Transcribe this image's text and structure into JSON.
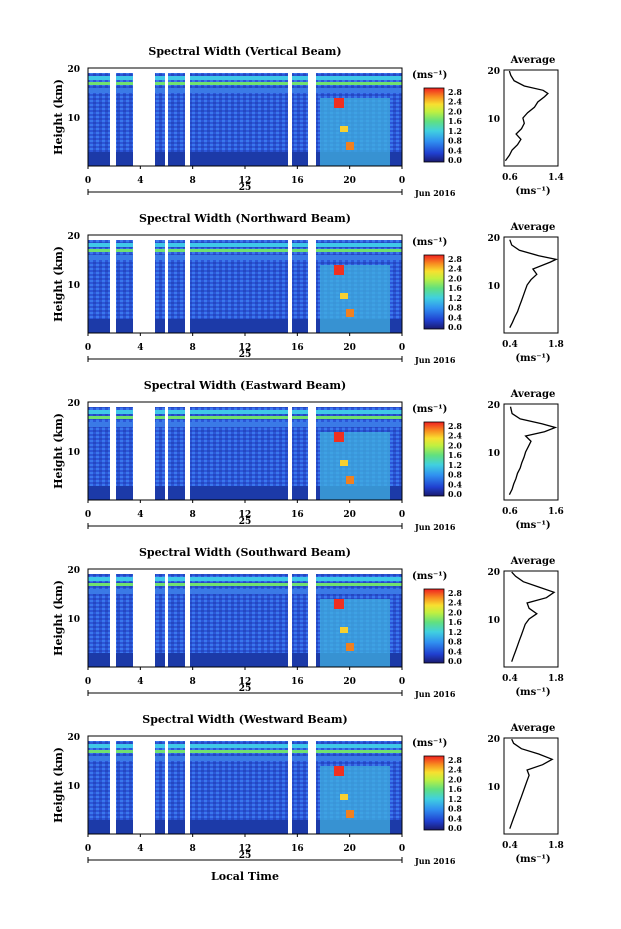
{
  "panels": [
    {
      "title": "Spectral Width (Vertical Beam)",
      "avg_ticks": [
        "0.6",
        "1.4"
      ]
    },
    {
      "title": "Spectral Width (Northward Beam)",
      "avg_ticks": [
        "0.4",
        "1.8"
      ]
    },
    {
      "title": "Spectral Width (Eastward Beam)",
      "avg_ticks": [
        "0.6",
        "1.6"
      ]
    },
    {
      "title": "Spectral Width (Southward Beam)",
      "avg_ticks": [
        "0.4",
        "1.8"
      ]
    },
    {
      "title": "Spectral Width (Westward Beam)",
      "avg_ticks": [
        "0.4",
        "1.8"
      ]
    }
  ],
  "common": {
    "ylabel": "Height (km)",
    "y_ticks": [
      "20",
      "10"
    ],
    "x_ticks": [
      "0",
      "4",
      "8",
      "12",
      "16",
      "20",
      "0"
    ],
    "day_label": "25",
    "month_label": "Jun 2016",
    "unit_label": "(ms⁻¹)",
    "colorbar_ticks": [
      "2.8",
      "2.4",
      "2.0",
      "1.6",
      "1.2",
      "0.8",
      "0.4",
      "0.0"
    ],
    "avg_title": "Average",
    "avg_ylabel_ticks": [
      "20",
      "10"
    ],
    "avg_xlabel": "(ms⁻¹)",
    "xlabel_bottom": "Local Time"
  },
  "chart_data": [
    {
      "type": "heatmap",
      "title": "Spectral Width (Vertical Beam)",
      "x_unit": "Local Time (h)",
      "xlim": [
        0,
        24
      ],
      "ylim": [
        2,
        20
      ],
      "zlim": [
        0.0,
        3.0
      ],
      "colorbar_ticks": [
        0.0,
        0.4,
        0.8,
        1.2,
        1.6,
        2.0,
        2.4,
        2.8
      ]
    },
    {
      "type": "line",
      "title": "Average",
      "xlim": [
        0.6,
        1.4
      ],
      "ylim": [
        2,
        20
      ],
      "points": [
        [
          0.62,
          3
        ],
        [
          0.68,
          4
        ],
        [
          0.72,
          5
        ],
        [
          0.8,
          6
        ],
        [
          0.85,
          7
        ],
        [
          0.78,
          8
        ],
        [
          0.86,
          9
        ],
        [
          0.9,
          10
        ],
        [
          0.88,
          11
        ],
        [
          0.95,
          12
        ],
        [
          1.05,
          13
        ],
        [
          1.1,
          14
        ],
        [
          1.2,
          15
        ],
        [
          1.25,
          15.6
        ],
        [
          1.18,
          16.2
        ],
        [
          0.9,
          17
        ],
        [
          0.75,
          18
        ],
        [
          0.7,
          19
        ],
        [
          0.68,
          19.8
        ]
      ]
    },
    {
      "type": "heatmap",
      "title": "Spectral Width (Northward Beam)",
      "x_unit": "Local Time (h)",
      "xlim": [
        0,
        24
      ],
      "ylim": [
        2,
        20
      ],
      "zlim": [
        0.0,
        3.0
      ],
      "colorbar_ticks": [
        0.0,
        0.4,
        0.8,
        1.2,
        1.6,
        2.0,
        2.4,
        2.8
      ]
    },
    {
      "type": "line",
      "title": "Average",
      "xlim": [
        0.4,
        1.8
      ],
      "ylim": [
        2,
        20
      ],
      "points": [
        [
          0.55,
          3
        ],
        [
          0.62,
          4
        ],
        [
          0.68,
          5
        ],
        [
          0.75,
          6
        ],
        [
          0.8,
          7
        ],
        [
          0.85,
          8
        ],
        [
          0.9,
          9
        ],
        [
          0.95,
          10
        ],
        [
          1.0,
          11
        ],
        [
          1.1,
          12
        ],
        [
          1.25,
          13
        ],
        [
          1.15,
          14
        ],
        [
          1.6,
          15.3
        ],
        [
          1.75,
          15.8
        ],
        [
          1.3,
          16.5
        ],
        [
          0.8,
          17.5
        ],
        [
          0.6,
          18.5
        ],
        [
          0.55,
          19.5
        ]
      ]
    },
    {
      "type": "heatmap",
      "title": "Spectral Width (Eastward Beam)",
      "x_unit": "Local Time (h)",
      "xlim": [
        0,
        24
      ],
      "ylim": [
        2,
        20
      ],
      "zlim": [
        0.0,
        3.0
      ],
      "colorbar_ticks": [
        0.0,
        0.4,
        0.8,
        1.2,
        1.6,
        2.0,
        2.4,
        2.8
      ]
    },
    {
      "type": "line",
      "title": "Average",
      "xlim": [
        0.6,
        1.6
      ],
      "ylim": [
        2,
        20
      ],
      "points": [
        [
          0.7,
          3
        ],
        [
          0.75,
          4
        ],
        [
          0.78,
          5
        ],
        [
          0.82,
          6
        ],
        [
          0.85,
          7
        ],
        [
          0.9,
          8
        ],
        [
          0.93,
          9
        ],
        [
          0.97,
          10
        ],
        [
          1.0,
          11
        ],
        [
          1.05,
          12
        ],
        [
          1.1,
          13
        ],
        [
          1.0,
          14
        ],
        [
          1.35,
          14.8
        ],
        [
          1.55,
          15.6
        ],
        [
          1.3,
          16.3
        ],
        [
          0.9,
          17.2
        ],
        [
          0.75,
          18.2
        ],
        [
          0.72,
          19.5
        ]
      ]
    },
    {
      "type": "heatmap",
      "title": "Spectral Width (Southward Beam)",
      "x_unit": "Local Time (h)",
      "xlim": [
        0,
        24
      ],
      "ylim": [
        2,
        20
      ],
      "zlim": [
        0.0,
        3.0
      ],
      "colorbar_ticks": [
        0.0,
        0.4,
        0.8,
        1.2,
        1.6,
        2.0,
        2.4,
        2.8
      ]
    },
    {
      "type": "line",
      "title": "Average",
      "xlim": [
        0.4,
        1.8
      ],
      "ylim": [
        2,
        20
      ],
      "points": [
        [
          0.6,
          3
        ],
        [
          0.65,
          4
        ],
        [
          0.7,
          5
        ],
        [
          0.75,
          6
        ],
        [
          0.8,
          7
        ],
        [
          0.85,
          8
        ],
        [
          0.9,
          9
        ],
        [
          0.95,
          10
        ],
        [
          1.05,
          11
        ],
        [
          1.25,
          12
        ],
        [
          1.05,
          13
        ],
        [
          1.0,
          14
        ],
        [
          1.5,
          15
        ],
        [
          1.7,
          16
        ],
        [
          1.3,
          17
        ],
        [
          0.9,
          18
        ],
        [
          0.7,
          19
        ],
        [
          0.6,
          19.8
        ]
      ]
    },
    {
      "type": "heatmap",
      "title": "Spectral Width (Westward Beam)",
      "x_unit": "Local Time (h)",
      "xlim": [
        0,
        24
      ],
      "ylim": [
        2,
        20
      ],
      "zlim": [
        0.0,
        3.0
      ],
      "colorbar_ticks": [
        0.0,
        0.4,
        0.8,
        1.2,
        1.6,
        2.0,
        2.4,
        2.8
      ]
    },
    {
      "type": "line",
      "title": "Average",
      "xlim": [
        0.4,
        1.8
      ],
      "ylim": [
        2,
        20
      ],
      "points": [
        [
          0.55,
          3
        ],
        [
          0.6,
          4
        ],
        [
          0.65,
          5
        ],
        [
          0.7,
          6
        ],
        [
          0.75,
          7
        ],
        [
          0.8,
          8
        ],
        [
          0.85,
          9
        ],
        [
          0.9,
          10
        ],
        [
          0.95,
          11
        ],
        [
          1.0,
          12
        ],
        [
          1.05,
          13
        ],
        [
          1.0,
          14
        ],
        [
          1.4,
          15
        ],
        [
          1.65,
          16
        ],
        [
          1.3,
          17
        ],
        [
          0.85,
          18
        ],
        [
          0.65,
          19
        ],
        [
          0.6,
          19.8
        ]
      ]
    }
  ]
}
